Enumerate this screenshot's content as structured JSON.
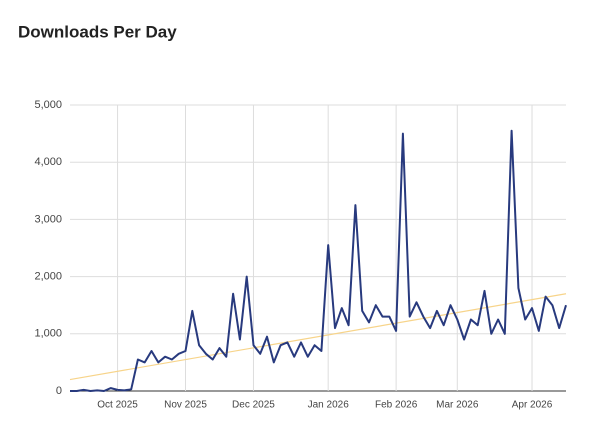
{
  "chart_data": {
    "type": "line",
    "title": "Downloads Per Day",
    "categories": [
      null,
      null,
      null,
      null,
      null,
      null,
      null,
      "Oct 2025",
      null,
      null,
      null,
      null,
      null,
      null,
      null,
      null,
      null,
      "Nov 2025",
      null,
      null,
      null,
      null,
      null,
      null,
      null,
      null,
      null,
      "Dec 2025",
      null,
      null,
      null,
      null,
      null,
      null,
      null,
      null,
      null,
      null,
      "Jan 2026",
      null,
      null,
      null,
      null,
      null,
      null,
      null,
      null,
      null,
      "Feb 2026",
      null,
      null,
      null,
      null,
      null,
      null,
      null,
      null,
      "Mar 2026",
      null,
      null,
      null,
      null,
      null,
      null,
      null,
      null,
      null,
      null,
      "Apr 2026",
      null,
      null,
      null,
      null,
      null
    ],
    "series": [
      {
        "color": "#283a7e",
        "values": [
          0,
          0,
          20,
          0,
          10,
          0,
          50,
          20,
          10,
          30,
          550,
          500,
          700,
          500,
          600,
          550,
          650,
          700,
          1400,
          800,
          650,
          550,
          750,
          600,
          1700,
          900,
          2000,
          800,
          650,
          950,
          500,
          800,
          850,
          600,
          850,
          600,
          800,
          700,
          2550,
          1100,
          1450,
          1150,
          3250,
          1400,
          1200,
          1500,
          1300,
          1300,
          1050,
          4500,
          1300,
          1550,
          1300,
          1100,
          1400,
          1150,
          1500,
          1250,
          900,
          1250,
          1150,
          1750,
          1000,
          1250,
          1000,
          4550,
          1800,
          1250,
          1450,
          1050,
          1650,
          1500,
          1100,
          1500
        ]
      }
    ],
    "trendline": {
      "color": "#f7d48a",
      "values": [
        200,
        1700
      ]
    },
    "ylim": [
      0,
      5000
    ],
    "yticks": [
      0,
      {
        "value": 1000,
        "label": "1,000"
      },
      {
        "value": 2000,
        "label": "2,000"
      },
      {
        "value": 3000,
        "label": "3,000"
      },
      {
        "value": 4000,
        "label": "4,000"
      },
      {
        "value": 5000,
        "label": "5,000"
      }
    ],
    "grid": true
  }
}
